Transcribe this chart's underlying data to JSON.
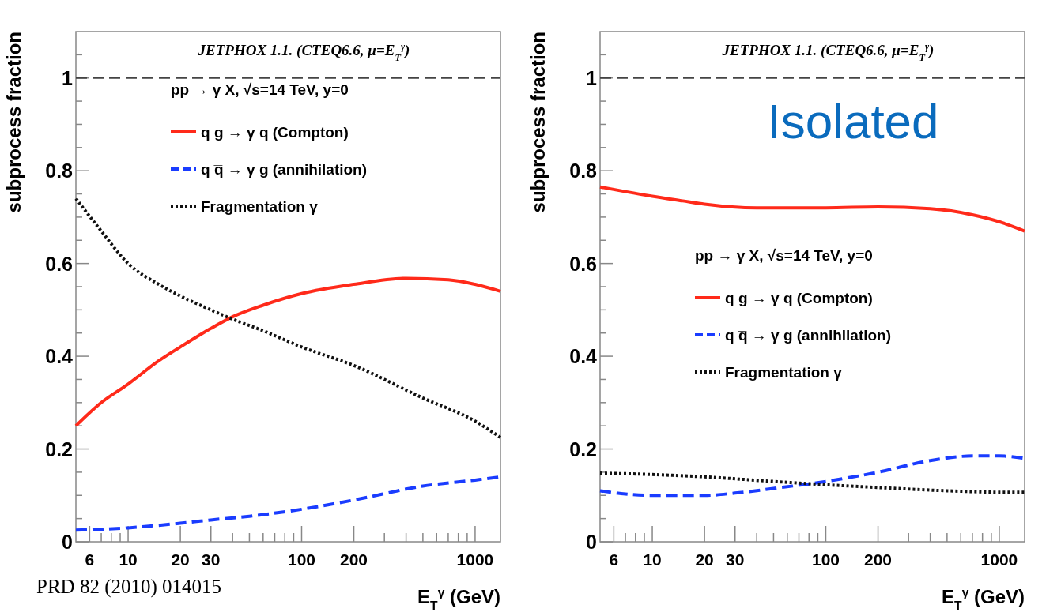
{
  "chart_data": [
    {
      "type": "line",
      "title": "JETPHOX 1.1. (CTEQ6.6, μ=E$_{T}$$^{γ}$)",
      "xlabel": "E$_{T}$$^{γ}$ (GeV)",
      "ylabel": "subprocess fraction",
      "legend_title": "pp → γ X, √s=14 TeV, y=0",
      "legend": "top",
      "log": "x",
      "xlim": [
        5,
        1400
      ],
      "ylim": [
        0,
        1.1
      ],
      "xticks": [
        {
          "value": 6,
          "label": "6"
        },
        {
          "value": 7,
          "label": null
        },
        {
          "value": 8,
          "label": null
        },
        {
          "value": 9,
          "label": null
        },
        10,
        20,
        30,
        {
          "value": 40,
          "label": null
        },
        {
          "value": 50,
          "label": null
        },
        {
          "value": 60,
          "label": null
        },
        {
          "value": 70,
          "label": null
        },
        {
          "value": 80,
          "label": null
        },
        {
          "value": 90,
          "label": null
        },
        100,
        200,
        {
          "value": 300,
          "label": null
        },
        {
          "value": 400,
          "label": null
        },
        {
          "value": 500,
          "label": null
        },
        {
          "value": 600,
          "label": null
        },
        {
          "value": 700,
          "label": null
        },
        {
          "value": 800,
          "label": null
        },
        {
          "value": 900,
          "label": null
        },
        1000
      ],
      "yticks": [
        0,
        {
          "value": 0.05,
          "label": null
        },
        {
          "value": 0.1,
          "label": null
        },
        {
          "value": 0.15,
          "label": null
        },
        0.2,
        {
          "value": 0.25,
          "label": null
        },
        {
          "value": 0.3,
          "label": null
        },
        {
          "value": 0.35,
          "label": null
        },
        0.4,
        {
          "value": 0.45,
          "label": null
        },
        {
          "value": 0.5,
          "label": null
        },
        {
          "value": 0.55,
          "label": null
        },
        0.6,
        {
          "value": 0.65,
          "label": null
        },
        {
          "value": 0.7,
          "label": null
        },
        {
          "value": 0.75,
          "label": null
        },
        0.8,
        {
          "value": 0.85,
          "label": null
        },
        {
          "value": 0.9,
          "label": null
        },
        {
          "value": 0.95,
          "label": null
        },
        1,
        {
          "value": 1.05,
          "label": null
        }
      ],
      "ref_lines": [
        {
          "axis": "y",
          "value": 1,
          "color": "#444444",
          "line_style": "dashed"
        }
      ],
      "annotations": [
        "PRD 82 (2010) 014015"
      ],
      "series": [
        {
          "name": "q g → γ q (Compton)",
          "color": "#ff2a1a",
          "line_style": "solid",
          "x": [
            5,
            7,
            10,
            15,
            20,
            30,
            40,
            60,
            100,
            200,
            400,
            700,
            1000,
            1400
          ],
          "values": [
            0.25,
            0.3,
            0.34,
            0.39,
            0.42,
            0.46,
            0.485,
            0.51,
            0.535,
            0.555,
            0.568,
            0.565,
            0.555,
            0.54
          ]
        },
        {
          "name": "q q̅ → γ g (annihilation)",
          "color": "#1a3cff",
          "line_style": "dashed",
          "x": [
            5,
            10,
            20,
            30,
            50,
            100,
            200,
            500,
            1000,
            1400
          ],
          "values": [
            0.025,
            0.03,
            0.04,
            0.047,
            0.055,
            0.07,
            0.09,
            0.12,
            0.133,
            0.14
          ]
        },
        {
          "name": "Fragmentation γ",
          "color": "#111111",
          "line_style": "dotted",
          "x": [
            5,
            7,
            10,
            15,
            20,
            30,
            40,
            60,
            100,
            200,
            500,
            1000,
            1400
          ],
          "values": [
            0.74,
            0.67,
            0.6,
            0.555,
            0.53,
            0.5,
            0.48,
            0.455,
            0.42,
            0.38,
            0.31,
            0.26,
            0.225
          ]
        }
      ]
    },
    {
      "type": "line",
      "title": "JETPHOX 1.1. (CTEQ6.6, μ=E$_{T}$$^{γ}$)",
      "xlabel": "E$_{T}$$^{γ}$ (GeV)",
      "ylabel": "subprocess fraction",
      "legend_title": "pp → γ X, √s=14 TeV, y=0",
      "legend": "center",
      "log": "x",
      "xlim": [
        5,
        1400
      ],
      "ylim": [
        0,
        1.1
      ],
      "xticks": [
        {
          "value": 6,
          "label": "6"
        },
        {
          "value": 7,
          "label": null
        },
        {
          "value": 8,
          "label": null
        },
        {
          "value": 9,
          "label": null
        },
        10,
        20,
        30,
        {
          "value": 40,
          "label": null
        },
        {
          "value": 50,
          "label": null
        },
        {
          "value": 60,
          "label": null
        },
        {
          "value": 70,
          "label": null
        },
        {
          "value": 80,
          "label": null
        },
        {
          "value": 90,
          "label": null
        },
        100,
        200,
        {
          "value": 300,
          "label": null
        },
        {
          "value": 400,
          "label": null
        },
        {
          "value": 500,
          "label": null
        },
        {
          "value": 600,
          "label": null
        },
        {
          "value": 700,
          "label": null
        },
        {
          "value": 800,
          "label": null
        },
        {
          "value": 900,
          "label": null
        },
        1000
      ],
      "yticks": [
        0,
        {
          "value": 0.05,
          "label": null
        },
        {
          "value": 0.1,
          "label": null
        },
        {
          "value": 0.15,
          "label": null
        },
        0.2,
        {
          "value": 0.25,
          "label": null
        },
        {
          "value": 0.3,
          "label": null
        },
        {
          "value": 0.35,
          "label": null
        },
        0.4,
        {
          "value": 0.45,
          "label": null
        },
        {
          "value": 0.5,
          "label": null
        },
        {
          "value": 0.55,
          "label": null
        },
        0.6,
        {
          "value": 0.65,
          "label": null
        },
        {
          "value": 0.7,
          "label": null
        },
        {
          "value": 0.75,
          "label": null
        },
        0.8,
        {
          "value": 0.85,
          "label": null
        },
        {
          "value": 0.9,
          "label": null
        },
        {
          "value": 0.95,
          "label": null
        },
        1,
        {
          "value": 1.05,
          "label": null
        }
      ],
      "ref_lines": [
        {
          "axis": "y",
          "value": 1,
          "color": "#444444",
          "line_style": "dashed"
        }
      ],
      "annotations": [
        "Isolated"
      ],
      "series": [
        {
          "name": "q g → γ q (Compton)",
          "color": "#ff2a1a",
          "line_style": "solid",
          "x": [
            5,
            7,
            10,
            15,
            20,
            40,
            100,
            200,
            400,
            700,
            1000,
            1400
          ],
          "values": [
            0.765,
            0.755,
            0.745,
            0.735,
            0.728,
            0.72,
            0.72,
            0.722,
            0.718,
            0.705,
            0.69,
            0.67
          ]
        },
        {
          "name": "q q̅ → γ g (annihilation)",
          "color": "#1a3cff",
          "line_style": "dashed",
          "x": [
            5,
            7,
            10,
            20,
            30,
            50,
            100,
            200,
            400,
            700,
            1000,
            1400
          ],
          "values": [
            0.11,
            0.103,
            0.1,
            0.1,
            0.105,
            0.115,
            0.13,
            0.15,
            0.175,
            0.185,
            0.185,
            0.18
          ]
        },
        {
          "name": "Fragmentation γ",
          "color": "#111111",
          "line_style": "dotted",
          "x": [
            5,
            10,
            20,
            50,
            100,
            200,
            500,
            1000,
            1400
          ],
          "values": [
            0.148,
            0.145,
            0.14,
            0.13,
            0.123,
            0.117,
            0.11,
            0.107,
            0.107
          ]
        }
      ]
    }
  ]
}
